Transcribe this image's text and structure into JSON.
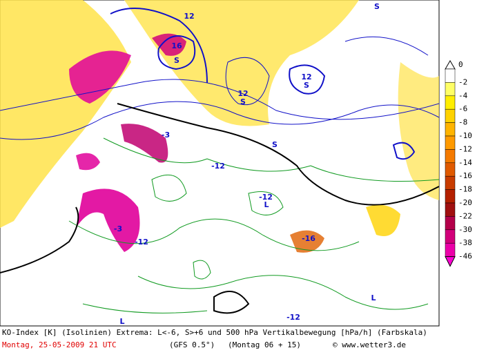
{
  "map": {
    "labels": [
      "16",
      "S",
      "12",
      "12",
      "S",
      "12",
      "S",
      "S",
      "S",
      "-3",
      "-12",
      "L",
      "-12",
      "-16",
      "-3",
      "-12",
      "L",
      "L",
      "-12"
    ],
    "colorbar": {
      "labels": [
        0,
        -2,
        -4,
        -6,
        -8,
        -10,
        -12,
        -14,
        -16,
        -18,
        -20,
        -22,
        -30,
        -38,
        -46
      ],
      "colors": [
        "#ffffff",
        "#ffff66",
        "#ffee00",
        "#ffd200",
        "#ffb400",
        "#ff9a00",
        "#f57a00",
        "#e05a00",
        "#c83c00",
        "#b42000",
        "#a01010",
        "#b4004a",
        "#d2007a",
        "#eb00a8",
        "#ff00d2"
      ]
    }
  },
  "footer": {
    "line1": "KO-Index [K] (Isolinien) Extrema: L<-6, S>+6 und 500 hPa Vertikalbewegung [hPa/h] (Farbskala)",
    "date": "Montag, 25-05-2009  21 UTC",
    "model": "(GFS 0.5°)",
    "run": "(Montag 06 + 15)",
    "credit": "© www.wetter3.de"
  }
}
